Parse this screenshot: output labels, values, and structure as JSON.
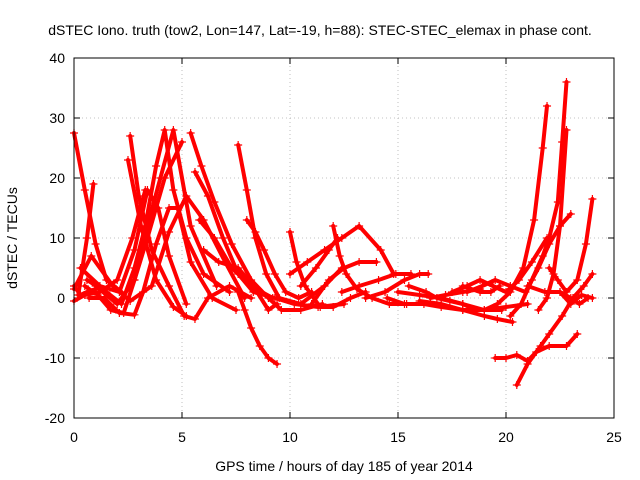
{
  "chart_data": {
    "type": "scatter",
    "title": "dSTEC Iono. truth (tow2, Lon=147, Lat=-19, h=88): STEC-STEC_elemax in phase cont.",
    "xlabel": "GPS time / hours of day 185 of year 2014",
    "ylabel": "dSTEC  / TECUs",
    "xlim": [
      0,
      25
    ],
    "ylim": [
      -20,
      40
    ],
    "xticks": [
      0,
      5,
      10,
      15,
      20,
      25
    ],
    "yticks": [
      -20,
      -10,
      0,
      10,
      20,
      30,
      40
    ],
    "xtick_labels": [
      "0",
      "5",
      "10",
      "15",
      "20",
      "25"
    ],
    "ytick_labels": [
      "-20",
      "-10",
      "0",
      "10",
      "20",
      "30",
      "40"
    ],
    "grid": true,
    "legend": "none",
    "marker": "+",
    "color": "#ff0000",
    "series": [
      {
        "x": [
          0,
          0.5,
          1.0,
          1.5,
          2.2
        ],
        "y": [
          27.5,
          18,
          9,
          3,
          1
        ]
      },
      {
        "x": [
          0,
          0.5,
          1.2,
          2.0,
          2.7,
          3.3
        ],
        "y": [
          -0.5,
          0.5,
          1,
          3,
          10,
          18
        ]
      },
      {
        "x": [
          0.2,
          0.6,
          0.9
        ],
        "y": [
          0.5,
          10,
          19
        ]
      },
      {
        "x": [
          0,
          0.8,
          1.8,
          2.6,
          3.6,
          4.4,
          5.2,
          6.0,
          7.0,
          7.9
        ],
        "y": [
          1.5,
          7,
          2,
          -0.5,
          2,
          11,
          17,
          13,
          6,
          0
        ]
      },
      {
        "x": [
          0.3,
          1.2,
          2.1,
          2.8,
          3.4,
          3.9,
          4.4,
          5.2
        ],
        "y": [
          5,
          2,
          1,
          8,
          18,
          15,
          7,
          -1
        ]
      },
      {
        "x": [
          0.5,
          1.1,
          1.7,
          2.3,
          2.8,
          3.4,
          4.2,
          5.0
        ],
        "y": [
          2,
          0.5,
          -2,
          -2.5,
          3,
          10,
          20,
          26
        ]
      },
      {
        "x": [
          0.6,
          1.5,
          2.2,
          2.8,
          3.3,
          3.8,
          4.2,
          4.6,
          5.2,
          6.0,
          7.2
        ],
        "y": [
          3,
          1,
          -1,
          5,
          12,
          22,
          28,
          18,
          10,
          4,
          1
        ]
      },
      {
        "x": [
          0.7,
          1.4,
          2.1,
          2.8,
          3.2,
          3.8,
          4.4,
          4.8,
          5.4,
          6.4,
          7.5
        ],
        "y": [
          0,
          0,
          -2.5,
          -2.8,
          1,
          9,
          15,
          15,
          6,
          0,
          -2
        ]
      },
      {
        "x": [
          1.0,
          2.0,
          2.8,
          3.4,
          4.0,
          4.6,
          5.4,
          6.6
        ],
        "y": [
          2,
          -1,
          3,
          12,
          20,
          28,
          12,
          2
        ]
      },
      {
        "x": [
          2.6,
          3.0,
          3.6,
          4.4,
          5.1,
          5.6,
          6.2,
          7.2,
          8.2
        ],
        "y": [
          27,
          17,
          8,
          2,
          -3,
          -3.5,
          0,
          2,
          0
        ]
      },
      {
        "x": [
          2.5,
          3.1,
          3.8,
          4.6,
          5.2
        ],
        "y": [
          23,
          12,
          3,
          -1.5,
          -3
        ]
      },
      {
        "x": [
          5.4,
          5.9,
          6.5,
          7.3,
          8.2,
          9.0,
          9.6,
          10.5,
          11.5
        ],
        "y": [
          27.5,
          22,
          16,
          9,
          3,
          0,
          -2,
          -2,
          -1
        ]
      },
      {
        "x": [
          5.6,
          6.2,
          6.9,
          7.6,
          8.3,
          9.3,
          10.2,
          11.3,
          12.5
        ],
        "y": [
          21,
          17,
          10,
          4,
          1,
          0,
          -1,
          -1.5,
          -1
        ]
      },
      {
        "x": [
          5.8,
          6.5,
          7.3,
          8.2,
          9.2
        ],
        "y": [
          13,
          10,
          5,
          2,
          0
        ]
      },
      {
        "x": [
          6.0,
          6.7,
          7.6,
          8.3,
          9.0,
          9.4
        ],
        "y": [
          8,
          6,
          5,
          2,
          -2,
          -1
        ]
      },
      {
        "x": [
          7.6,
          8.0,
          8.4,
          8.9,
          9.5,
          10.5,
          11.6,
          12.4
        ],
        "y": [
          25.5,
          18,
          10,
          4,
          0,
          -1,
          2,
          5
        ]
      },
      {
        "x": [
          8.0,
          8.4,
          8.8,
          9.3,
          9.8,
          10.4,
          11.0
        ],
        "y": [
          13,
          11,
          8,
          4,
          1,
          0,
          1
        ]
      },
      {
        "x": [
          7.6,
          7.9,
          8.2,
          8.6,
          9.0,
          9.4
        ],
        "y": [
          1,
          -2,
          -5,
          -8,
          -10,
          -11
        ]
      },
      {
        "x": [
          10.0,
          10.3,
          10.7,
          11.4,
          12.0,
          12.8,
          13.5
        ],
        "y": [
          11,
          6,
          2,
          -1.5,
          -1.5,
          0,
          1
        ]
      },
      {
        "x": [
          10.0,
          10.8,
          11.6,
          12.4,
          13.2,
          14.2,
          14.8
        ],
        "y": [
          4,
          6,
          8,
          10,
          12,
          8,
          4
        ]
      },
      {
        "x": [
          10.5,
          11.2,
          11.8,
          12.2
        ],
        "y": [
          2,
          5,
          8,
          10
        ]
      },
      {
        "x": [
          11.0,
          11.8,
          12.5,
          13.2,
          14.0
        ],
        "y": [
          -1,
          3,
          5,
          6,
          6
        ]
      },
      {
        "x": [
          12.0,
          12.3,
          12.6,
          13.1,
          13.8,
          14.6,
          15.4
        ],
        "y": [
          12,
          7,
          4,
          1.5,
          0,
          -1,
          -1
        ]
      },
      {
        "x": [
          12.4,
          13.2,
          14.1,
          14.9,
          15.6
        ],
        "y": [
          1,
          2,
          3,
          4,
          4
        ]
      },
      {
        "x": [
          13.5,
          14.4,
          15.3,
          16.0,
          16.4
        ],
        "y": [
          0,
          1,
          3,
          4,
          4
        ]
      },
      {
        "x": [
          14.5,
          15.3,
          16.2,
          17.0,
          18.0,
          19.0,
          20.0,
          21.0
        ],
        "y": [
          0,
          -1,
          -1,
          -1.5,
          -2,
          -2,
          -1.5,
          -1
        ]
      },
      {
        "x": [
          15.0,
          16.0,
          17.0,
          18.0,
          19.0,
          19.8
        ],
        "y": [
          1,
          0.5,
          0,
          -1,
          -2,
          -2
        ]
      },
      {
        "x": [
          15.5,
          16.3,
          16.8,
          17.4,
          18.0,
          18.6
        ],
        "y": [
          2,
          1,
          0,
          -0.5,
          -1,
          -2
        ]
      },
      {
        "x": [
          16.0,
          17.0,
          18.0,
          19.0,
          19.6,
          20.3
        ],
        "y": [
          -0.5,
          -1,
          -2,
          -3,
          -3.5,
          -4
        ]
      },
      {
        "x": [
          16.5,
          17.2,
          18.0,
          18.8
        ],
        "y": [
          0,
          0.5,
          1,
          1.5
        ]
      },
      {
        "x": [
          17.5,
          18.2,
          18.8,
          19.4,
          20.0,
          20.6,
          21.2,
          21.9
        ],
        "y": [
          1,
          2,
          3,
          2,
          1,
          3,
          6,
          10
        ]
      },
      {
        "x": [
          18.2,
          18.9,
          19.5,
          20.2,
          20.9,
          21.5,
          22.0,
          22.5,
          23.0
        ],
        "y": [
          1,
          2,
          3,
          2,
          1,
          5,
          9,
          12,
          14
        ]
      },
      {
        "x": [
          18.0,
          18.8,
          19.3,
          19.7
        ],
        "y": [
          2,
          1,
          1,
          2
        ]
      },
      {
        "x": [
          19.0,
          19.6,
          20.2,
          20.8,
          21.3,
          21.7,
          21.9
        ],
        "y": [
          -2,
          -1,
          1,
          5,
          13,
          25,
          32
        ]
      },
      {
        "x": [
          20.2,
          20.7,
          21.2,
          21.7,
          22.0,
          22.4,
          22.6,
          22.8
        ],
        "y": [
          -3,
          -1,
          3,
          7,
          10,
          16,
          26,
          36
        ]
      },
      {
        "x": [
          21.5,
          21.9,
          22.2,
          22.5,
          22.8
        ],
        "y": [
          -2,
          0,
          4,
          12,
          28
        ]
      },
      {
        "x": [
          19.5,
          20.0,
          20.5,
          21.0,
          21.4,
          22.0,
          22.8,
          23.3
        ],
        "y": [
          -10,
          -10,
          -9.5,
          -10.5,
          -9,
          -8,
          -8,
          -6
        ]
      },
      {
        "x": [
          20.5,
          21.0,
          21.6,
          22.0,
          22.6,
          23.1,
          23.6,
          24.0
        ],
        "y": [
          -14.5,
          -11,
          -8,
          -6,
          -3,
          0,
          2,
          4
        ]
      },
      {
        "x": [
          21.0,
          21.8,
          22.5,
          23.0,
          23.4,
          23.8
        ],
        "y": [
          2,
          1,
          1,
          0,
          -1,
          0
        ]
      },
      {
        "x": [
          22.0,
          22.4,
          22.8,
          23.3,
          23.7,
          24.0
        ],
        "y": [
          5,
          3,
          1,
          3,
          9,
          16.5
        ]
      },
      {
        "x": [
          22.5,
          23.0,
          23.5,
          24.0
        ],
        "y": [
          1,
          -1,
          0.5,
          0
        ]
      },
      {
        "x": [
          0,
          0.3,
          0.6,
          1.0
        ],
        "y": [
          2,
          0.5,
          1,
          1.5
        ]
      }
    ]
  }
}
